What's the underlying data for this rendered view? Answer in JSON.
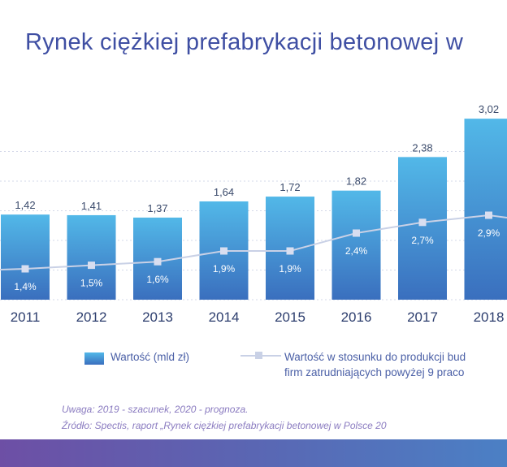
{
  "title": "Rynek ciężkiej prefabrykacji betonowej w",
  "chart_data": {
    "type": "bar",
    "categories": [
      "2011",
      "2012",
      "2013",
      "2014",
      "2015",
      "2016",
      "2017",
      "2018"
    ],
    "series": [
      {
        "name": "Wartość (mld zł)",
        "type": "bar",
        "values": [
          1.42,
          1.41,
          1.37,
          1.64,
          1.72,
          1.82,
          2.38,
          3.02
        ],
        "labels": [
          "1,42",
          "1,41",
          "1,37",
          "1,64",
          "1,72",
          "1,82",
          "2,38",
          "3,02"
        ]
      },
      {
        "name": "Wartość w stosunku do produkcji bud firm zatrudniających powyżej 9 praco",
        "type": "line",
        "values": [
          1.4,
          1.5,
          1.6,
          1.9,
          1.9,
          2.4,
          2.7,
          2.9
        ],
        "labels": [
          "1,4%",
          "1,5%",
          "1,6%",
          "1,9%",
          "1,9%",
          "2,4%",
          "2,7%",
          "2,9%"
        ]
      }
    ],
    "grid": true,
    "legend_position": "bottom"
  },
  "legend": {
    "bar_label": "Wartość (mld zł)",
    "line_label_1": "Wartość w stosunku do produkcji bud",
    "line_label_2": "firm zatrudniających powyżej 9 praco"
  },
  "notes": {
    "uwaga": "Uwaga: 2019 - szacunek, 2020 - prognoza.",
    "zrodlo": "Źródło: Spectis, raport „Rynek ciężkiej prefabrykacji betonowej w Polsce 20"
  },
  "colors": {
    "bar_top": "#52b8e8",
    "bar_bottom": "#3a6fbe",
    "line": "#c9d1e6",
    "title": "#3f4fa3",
    "grid": "#d3d8e8"
  }
}
